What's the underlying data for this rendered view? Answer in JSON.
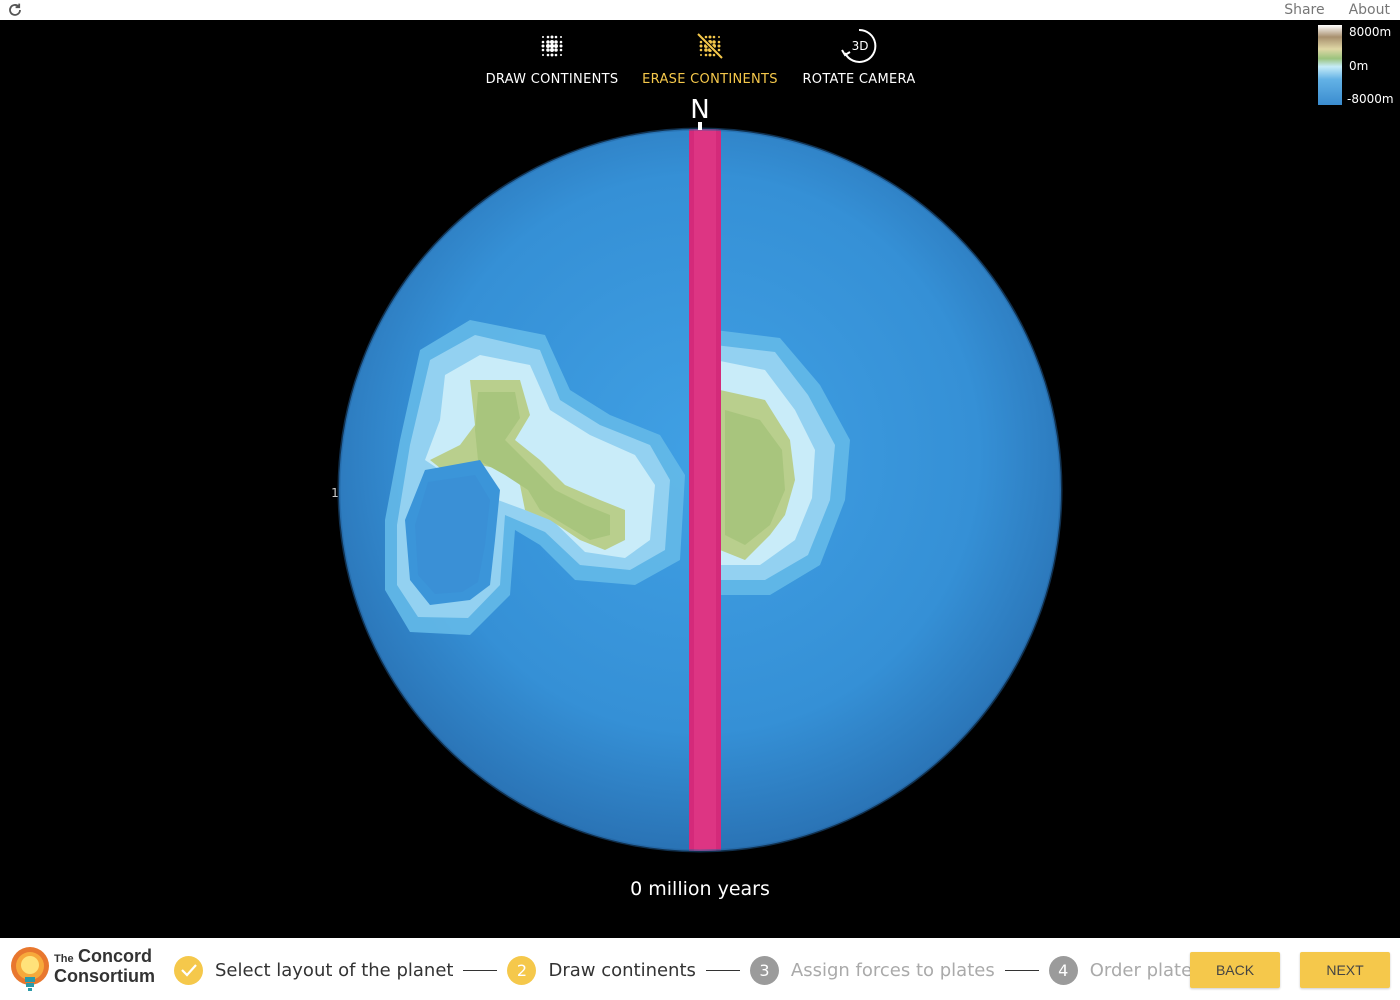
{
  "topbar": {
    "share_label": "Share",
    "about_label": "About"
  },
  "modes": [
    {
      "label": "DRAW CONTINENTS",
      "icon": "draw-continents-icon",
      "active": false
    },
    {
      "label": "ERASE CONTINENTS",
      "icon": "erase-continents-icon",
      "active": true
    },
    {
      "label": "ROTATE CAMERA",
      "icon": "rotate-camera-3d-icon",
      "active": false,
      "icon_text": "3D"
    }
  ],
  "legend": {
    "max_label": "8000m",
    "mid_label": "0m",
    "min_label": "-8000m"
  },
  "globe": {
    "north_label": "N",
    "side_marker": "1",
    "ocean_color": "#3b95d9",
    "boundary_color": "#d42a7a"
  },
  "time_label": "0 million years",
  "logo": {
    "line1_small": "The",
    "line1": "Concord",
    "line2": "Consortium"
  },
  "steps": [
    {
      "number": "",
      "label": "Select layout of the planet",
      "state": "done"
    },
    {
      "number": "2",
      "label": "Draw continents",
      "state": "current"
    },
    {
      "number": "3",
      "label": "Assign forces to plates",
      "state": "todo"
    },
    {
      "number": "4",
      "label": "Order plates",
      "state": "todo"
    }
  ],
  "buttons": {
    "back_label": "BACK",
    "next_label": "NEXT"
  },
  "colors": {
    "accent": "#f5c84b",
    "inactive_step": "#9b9b9b"
  }
}
